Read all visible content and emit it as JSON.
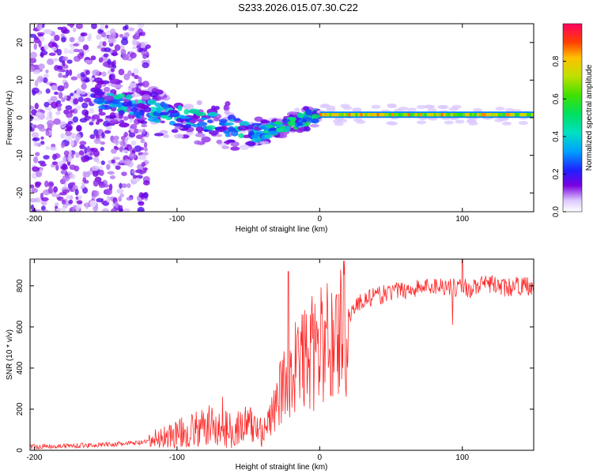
{
  "title": "S233.2026.015.07.30.C22",
  "colors": {
    "snr_line": "#ff2a2a",
    "background": "#ffffff",
    "frame": "#000000"
  },
  "chart_data": [
    {
      "type": "heatmap",
      "name": "spectrogram",
      "xlabel": "Height of straight line (km)",
      "ylabel": "Frequency (Hz)",
      "xlim": [
        -203,
        150
      ],
      "ylim": [
        -25,
        25
      ],
      "xticks": [
        -200,
        -100,
        0,
        100
      ],
      "xtick_labels": [
        "-200",
        "-100",
        "0",
        "100"
      ],
      "yticks": [
        -20,
        -10,
        0,
        10,
        20
      ],
      "ytick_labels": [
        "-20",
        "-10",
        "0",
        "10",
        "20"
      ],
      "colorbar": {
        "label": "Normalized spectral amplitude",
        "range": [
          0,
          1
        ],
        "ticks": [
          0.0,
          0.2,
          0.4,
          0.6,
          0.8
        ],
        "tick_labels": [
          "0.0",
          "0.2",
          "0.4",
          "0.6",
          "0.8"
        ]
      },
      "features": [
        {
          "region": "scattered noise",
          "x_range": [
            -203,
            -120
          ],
          "freq_range": [
            -25,
            25
          ],
          "amplitude": 0.1
        },
        {
          "region": "descending streak",
          "x_range": [
            -160,
            -40
          ],
          "freq_start": 5,
          "freq_end": -4,
          "amplitude": 0.35
        },
        {
          "region": "rising streak",
          "x_range": [
            -40,
            0
          ],
          "freq_start": -4,
          "freq_end": 1,
          "amplitude": 0.4
        },
        {
          "region": "steady line",
          "x_range": [
            0,
            150
          ],
          "freq": 0.8,
          "amplitude": 0.7
        }
      ]
    },
    {
      "type": "line",
      "name": "snr",
      "xlabel": "Height of straight line (km)",
      "ylabel": "SNR (10 * v/v)",
      "xlim": [
        -203,
        150
      ],
      "ylim": [
        0,
        930
      ],
      "xticks": [
        -200,
        -100,
        0,
        100
      ],
      "xtick_labels": [
        "-200",
        "-100",
        "0",
        "100"
      ],
      "yticks": [
        0,
        200,
        400,
        600,
        800
      ],
      "ytick_labels": [
        "0",
        "200",
        "400",
        "600",
        "800"
      ],
      "series": [
        {
          "name": "SNR",
          "x": [
            -203,
            -190,
            -175,
            -160,
            -150,
            -140,
            -130,
            -120,
            -115,
            -110,
            -100,
            -90,
            -80,
            -75,
            -70,
            -60,
            -50,
            -45,
            -40,
            -35,
            -30,
            -25,
            -22,
            -20,
            -15,
            -10,
            -5,
            0,
            5,
            10,
            15,
            20,
            25,
            30,
            40,
            50,
            60,
            70,
            80,
            90,
            95,
            100,
            105,
            110,
            120,
            130,
            140,
            150
          ],
          "values": [
            18,
            20,
            22,
            25,
            28,
            30,
            35,
            40,
            55,
            65,
            80,
            95,
            110,
            125,
            100,
            105,
            120,
            110,
            100,
            140,
            230,
            320,
            360,
            380,
            430,
            450,
            470,
            500,
            520,
            540,
            590,
            650,
            700,
            730,
            750,
            770,
            780,
            790,
            800,
            800,
            790,
            810,
            780,
            800,
            810,
            790,
            800,
            800
          ],
          "spikes": [
            {
              "x": -68,
              "value": 260
            },
            {
              "x": -22,
              "value": 870
            },
            {
              "x": 100,
              "value": 930
            },
            {
              "x": 93,
              "value": 610
            }
          ]
        }
      ]
    }
  ]
}
